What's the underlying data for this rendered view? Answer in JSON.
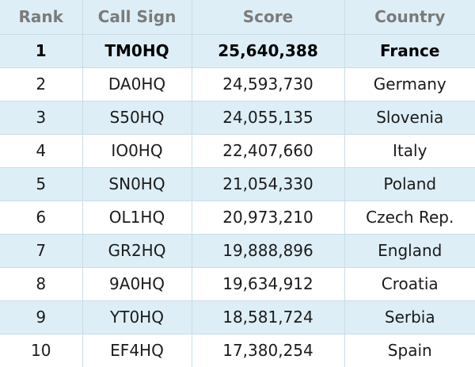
{
  "table": {
    "columns": [
      "Rank",
      "Call Sign",
      "Score",
      "Country"
    ],
    "rows": [
      {
        "rank": "1",
        "call_sign": "TM0HQ",
        "score": "25,640,388",
        "country": "France"
      },
      {
        "rank": "2",
        "call_sign": "DA0HQ",
        "score": "24,593,730",
        "country": "Germany"
      },
      {
        "rank": "3",
        "call_sign": "S50HQ",
        "score": "24,055,135",
        "country": "Slovenia"
      },
      {
        "rank": "4",
        "call_sign": "IO0HQ",
        "score": "22,407,660",
        "country": "Italy"
      },
      {
        "rank": "5",
        "call_sign": "SN0HQ",
        "score": "21,054,330",
        "country": "Poland"
      },
      {
        "rank": "6",
        "call_sign": "OL1HQ",
        "score": "20,973,210",
        "country": "Czech Rep."
      },
      {
        "rank": "7",
        "call_sign": "GR2HQ",
        "score": "19,888,896",
        "country": "England"
      },
      {
        "rank": "8",
        "call_sign": "9A0HQ",
        "score": "19,634,912",
        "country": "Croatia"
      },
      {
        "rank": "9",
        "call_sign": "YT0HQ",
        "score": "18,581,724",
        "country": "Serbia"
      },
      {
        "rank": "10",
        "call_sign": "EF4HQ",
        "score": "17,380,254",
        "country": "Spain"
      }
    ]
  },
  "colors": {
    "header_text": "#7b7b7b",
    "shaded_row": "#ddeef6",
    "plain_row": "#ffffff",
    "grid_line": "#c9dde6",
    "body_text": "#1b1b1b"
  }
}
